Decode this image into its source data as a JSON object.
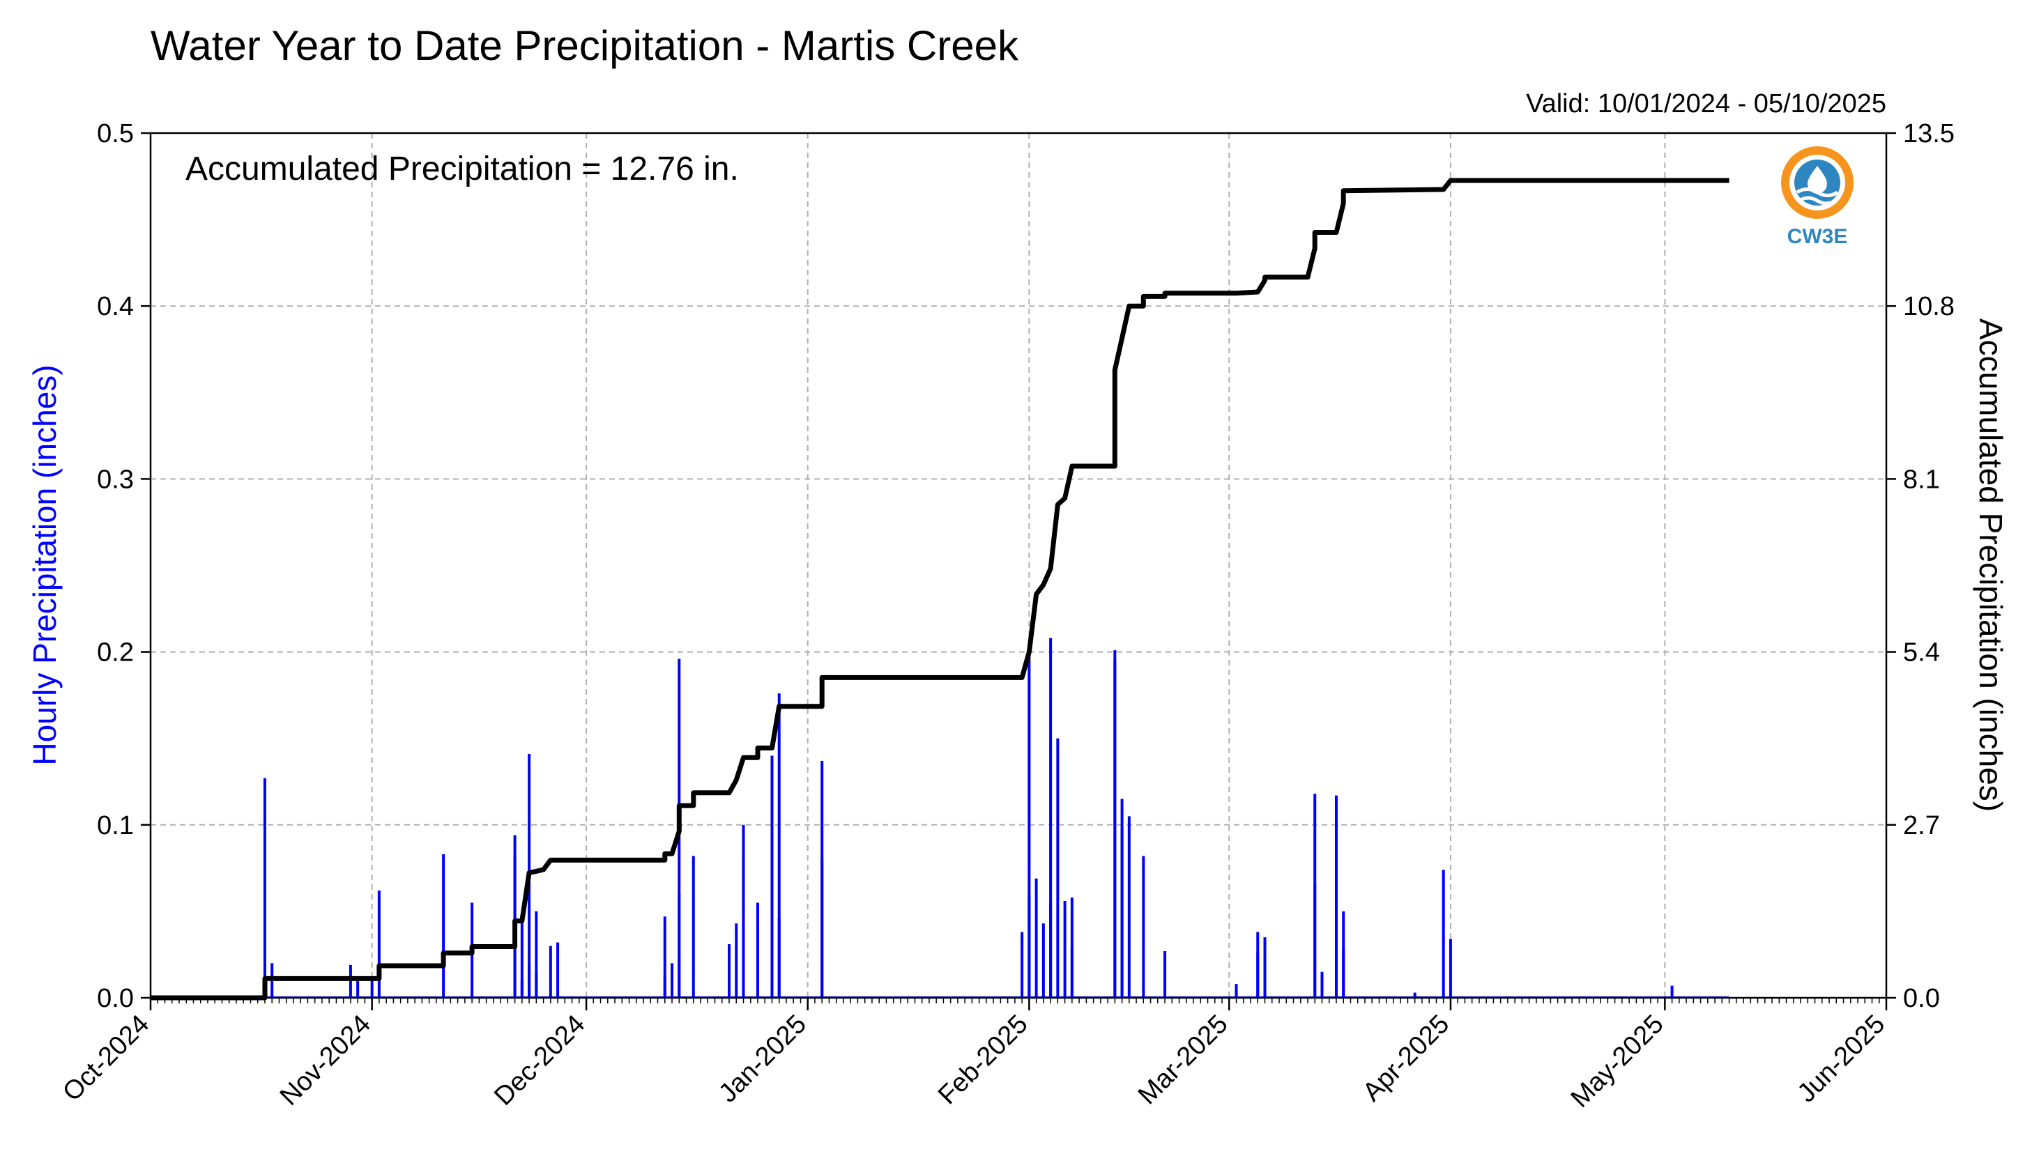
{
  "chart_data": {
    "type": "bar",
    "title": "Water Year to Date Precipitation - Martis Creek",
    "valid_text": "Valid: 10/01/2024 - 05/10/2025",
    "annotation": "Accumulated Precipitation = 12.76 in.",
    "logo_text": "CW3E",
    "ylabel_left": "Hourly Precipitation (inches)",
    "ylabel_right": "Accumulated Precipitation (inches)",
    "x_range": [
      "2024-10-01",
      "2025-06-01"
    ],
    "ylim_left": [
      0,
      0.5
    ],
    "ylim_right": [
      0,
      13.5
    ],
    "left_ticks": [
      "0.0",
      "0.1",
      "0.2",
      "0.3",
      "0.4",
      "0.5"
    ],
    "right_ticks": [
      "0.0",
      "2.7",
      "5.4",
      "8.1",
      "10.8",
      "13.5"
    ],
    "x_ticks": [
      {
        "label": "Oct-2024",
        "date": "2024-10-01"
      },
      {
        "label": "Nov-2024",
        "date": "2024-11-01"
      },
      {
        "label": "Dec-2024",
        "date": "2024-12-01"
      },
      {
        "label": "Jan-2025",
        "date": "2025-01-01"
      },
      {
        "label": "Feb-2025",
        "date": "2025-02-01"
      },
      {
        "label": "Mar-2025",
        "date": "2025-03-01"
      },
      {
        "label": "Apr-2025",
        "date": "2025-04-01"
      },
      {
        "label": "May-2025",
        "date": "2025-05-01"
      },
      {
        "label": "Jun-2025",
        "date": "2025-06-01"
      }
    ],
    "grid": true,
    "colors": {
      "hourly": "#0000ff",
      "accumulated": "#000000",
      "grid": "#b0b0b0",
      "logo_orange": "#f7941d",
      "logo_blue": "#2e86c1"
    },
    "series": [
      {
        "name": "Hourly Precipitation (inches)",
        "axis": "left",
        "kind": "bar",
        "points": [
          [
            "2024-10-17",
            0.127
          ],
          [
            "2024-10-18",
            0.02
          ],
          [
            "2024-10-29",
            0.019
          ],
          [
            "2024-10-30",
            0.01
          ],
          [
            "2024-11-02",
            0.062
          ],
          [
            "2024-11-01",
            0.01
          ],
          [
            "2024-11-11",
            0.083
          ],
          [
            "2024-11-15",
            0.055
          ],
          [
            "2024-11-21",
            0.094
          ],
          [
            "2024-11-21",
            0.082
          ],
          [
            "2024-11-22",
            0.045
          ],
          [
            "2024-11-22",
            0.01
          ],
          [
            "2024-11-23",
            0.02
          ],
          [
            "2024-11-23",
            0.141
          ],
          [
            "2024-11-24",
            0.05
          ],
          [
            "2024-11-24",
            0.015
          ],
          [
            "2024-11-26",
            0.03
          ],
          [
            "2024-11-27",
            0.032
          ],
          [
            "2024-12-12",
            0.047
          ],
          [
            "2024-12-12",
            0.012
          ],
          [
            "2024-12-13",
            0.02
          ],
          [
            "2024-12-14",
            0.196
          ],
          [
            "2024-12-14",
            0.06
          ],
          [
            "2024-12-16",
            0.082
          ],
          [
            "2024-12-21",
            0.031
          ],
          [
            "2024-12-22",
            0.043
          ],
          [
            "2024-12-23",
            0.1
          ],
          [
            "2024-12-23",
            0.083
          ],
          [
            "2024-12-25",
            0.055
          ],
          [
            "2024-12-25",
            0.022
          ],
          [
            "2024-12-27",
            0.14
          ],
          [
            "2024-12-28",
            0.176
          ],
          [
            "2024-12-28",
            0.046
          ],
          [
            "2025-01-03",
            0.137
          ],
          [
            "2025-01-03",
            0.08
          ],
          [
            "2025-01-31",
            0.038
          ],
          [
            "2025-02-01",
            0.06
          ],
          [
            "2025-02-01",
            0.2
          ],
          [
            "2025-02-02",
            0.069
          ],
          [
            "2025-02-03",
            0.043
          ],
          [
            "2025-02-04",
            0.055
          ],
          [
            "2025-02-04",
            0.208
          ],
          [
            "2025-02-05",
            0.15
          ],
          [
            "2025-02-06",
            0.056
          ],
          [
            "2025-02-07",
            0.058
          ],
          [
            "2025-02-07",
            0.03
          ],
          [
            "2025-02-13",
            0.201
          ],
          [
            "2025-02-13",
            0.195
          ],
          [
            "2025-02-14",
            0.115
          ],
          [
            "2025-02-14",
            0.098
          ],
          [
            "2025-02-15",
            0.105
          ],
          [
            "2025-02-17",
            0.082
          ],
          [
            "2025-02-20",
            0.027
          ],
          [
            "2025-03-02",
            0.008
          ],
          [
            "2025-03-02",
            0.004
          ],
          [
            "2025-03-05",
            0.026
          ],
          [
            "2025-03-05",
            0.038
          ],
          [
            "2025-03-06",
            0.035
          ],
          [
            "2025-03-06",
            0.026
          ],
          [
            "2025-03-13",
            0.066
          ],
          [
            "2025-03-13",
            0.118
          ],
          [
            "2025-03-14",
            0.015
          ],
          [
            "2025-03-16",
            0.117
          ],
          [
            "2025-03-17",
            0.05
          ],
          [
            "2025-03-17",
            0.028
          ],
          [
            "2025-03-27",
            0.003
          ],
          [
            "2025-03-31",
            0.074
          ],
          [
            "2025-04-01",
            0.034
          ],
          [
            "2025-05-02",
            0.007
          ]
        ]
      },
      {
        "name": "Accumulated Precipitation (inches)",
        "axis": "right",
        "kind": "step",
        "points": [
          [
            "2024-10-01",
            0.0
          ],
          [
            "2024-10-17",
            0.0
          ],
          [
            "2024-10-17",
            0.3
          ],
          [
            "2024-11-02",
            0.3
          ],
          [
            "2024-11-02",
            0.5
          ],
          [
            "2024-11-11",
            0.5
          ],
          [
            "2024-11-11",
            0.7
          ],
          [
            "2024-11-15",
            0.7
          ],
          [
            "2024-11-15",
            0.8
          ],
          [
            "2024-11-21",
            0.8
          ],
          [
            "2024-11-21",
            1.2
          ],
          [
            "2024-11-22",
            1.2
          ],
          [
            "2024-11-23",
            1.95
          ],
          [
            "2024-11-25",
            2.0
          ],
          [
            "2024-11-26",
            2.15
          ],
          [
            "2024-12-12",
            2.15
          ],
          [
            "2024-12-12",
            2.25
          ],
          [
            "2024-12-13",
            2.25
          ],
          [
            "2024-12-14",
            2.6
          ],
          [
            "2024-12-14",
            3.0
          ],
          [
            "2024-12-16",
            3.0
          ],
          [
            "2024-12-16",
            3.2
          ],
          [
            "2024-12-21",
            3.2
          ],
          [
            "2024-12-22",
            3.4
          ],
          [
            "2024-12-23",
            3.75
          ],
          [
            "2024-12-25",
            3.75
          ],
          [
            "2024-12-25",
            3.9
          ],
          [
            "2024-12-27",
            3.9
          ],
          [
            "2024-12-28",
            4.55
          ],
          [
            "2025-01-03",
            4.55
          ],
          [
            "2025-01-03",
            5.0
          ],
          [
            "2025-01-31",
            5.0
          ],
          [
            "2025-02-01",
            5.4
          ],
          [
            "2025-02-02",
            6.3
          ],
          [
            "2025-02-03",
            6.45
          ],
          [
            "2025-02-04",
            6.7
          ],
          [
            "2025-02-05",
            7.7
          ],
          [
            "2025-02-06",
            7.8
          ],
          [
            "2025-02-07",
            8.3
          ],
          [
            "2025-02-13",
            8.3
          ],
          [
            "2025-02-13",
            9.8
          ],
          [
            "2025-02-14",
            10.3
          ],
          [
            "2025-02-15",
            10.8
          ],
          [
            "2025-02-17",
            10.8
          ],
          [
            "2025-02-17",
            10.95
          ],
          [
            "2025-02-20",
            10.95
          ],
          [
            "2025-02-20",
            11.0
          ],
          [
            "2025-03-02",
            11.0
          ],
          [
            "2025-03-05",
            11.02
          ],
          [
            "2025-03-06",
            11.2
          ],
          [
            "2025-03-06",
            11.25
          ],
          [
            "2025-03-12",
            11.25
          ],
          [
            "2025-03-13",
            11.7
          ],
          [
            "2025-03-13",
            11.95
          ],
          [
            "2025-03-16",
            11.95
          ],
          [
            "2025-03-17",
            12.4
          ],
          [
            "2025-03-17",
            12.6
          ],
          [
            "2025-03-31",
            12.62
          ],
          [
            "2025-04-01",
            12.76
          ],
          [
            "2025-05-10",
            12.76
          ]
        ]
      }
    ]
  }
}
